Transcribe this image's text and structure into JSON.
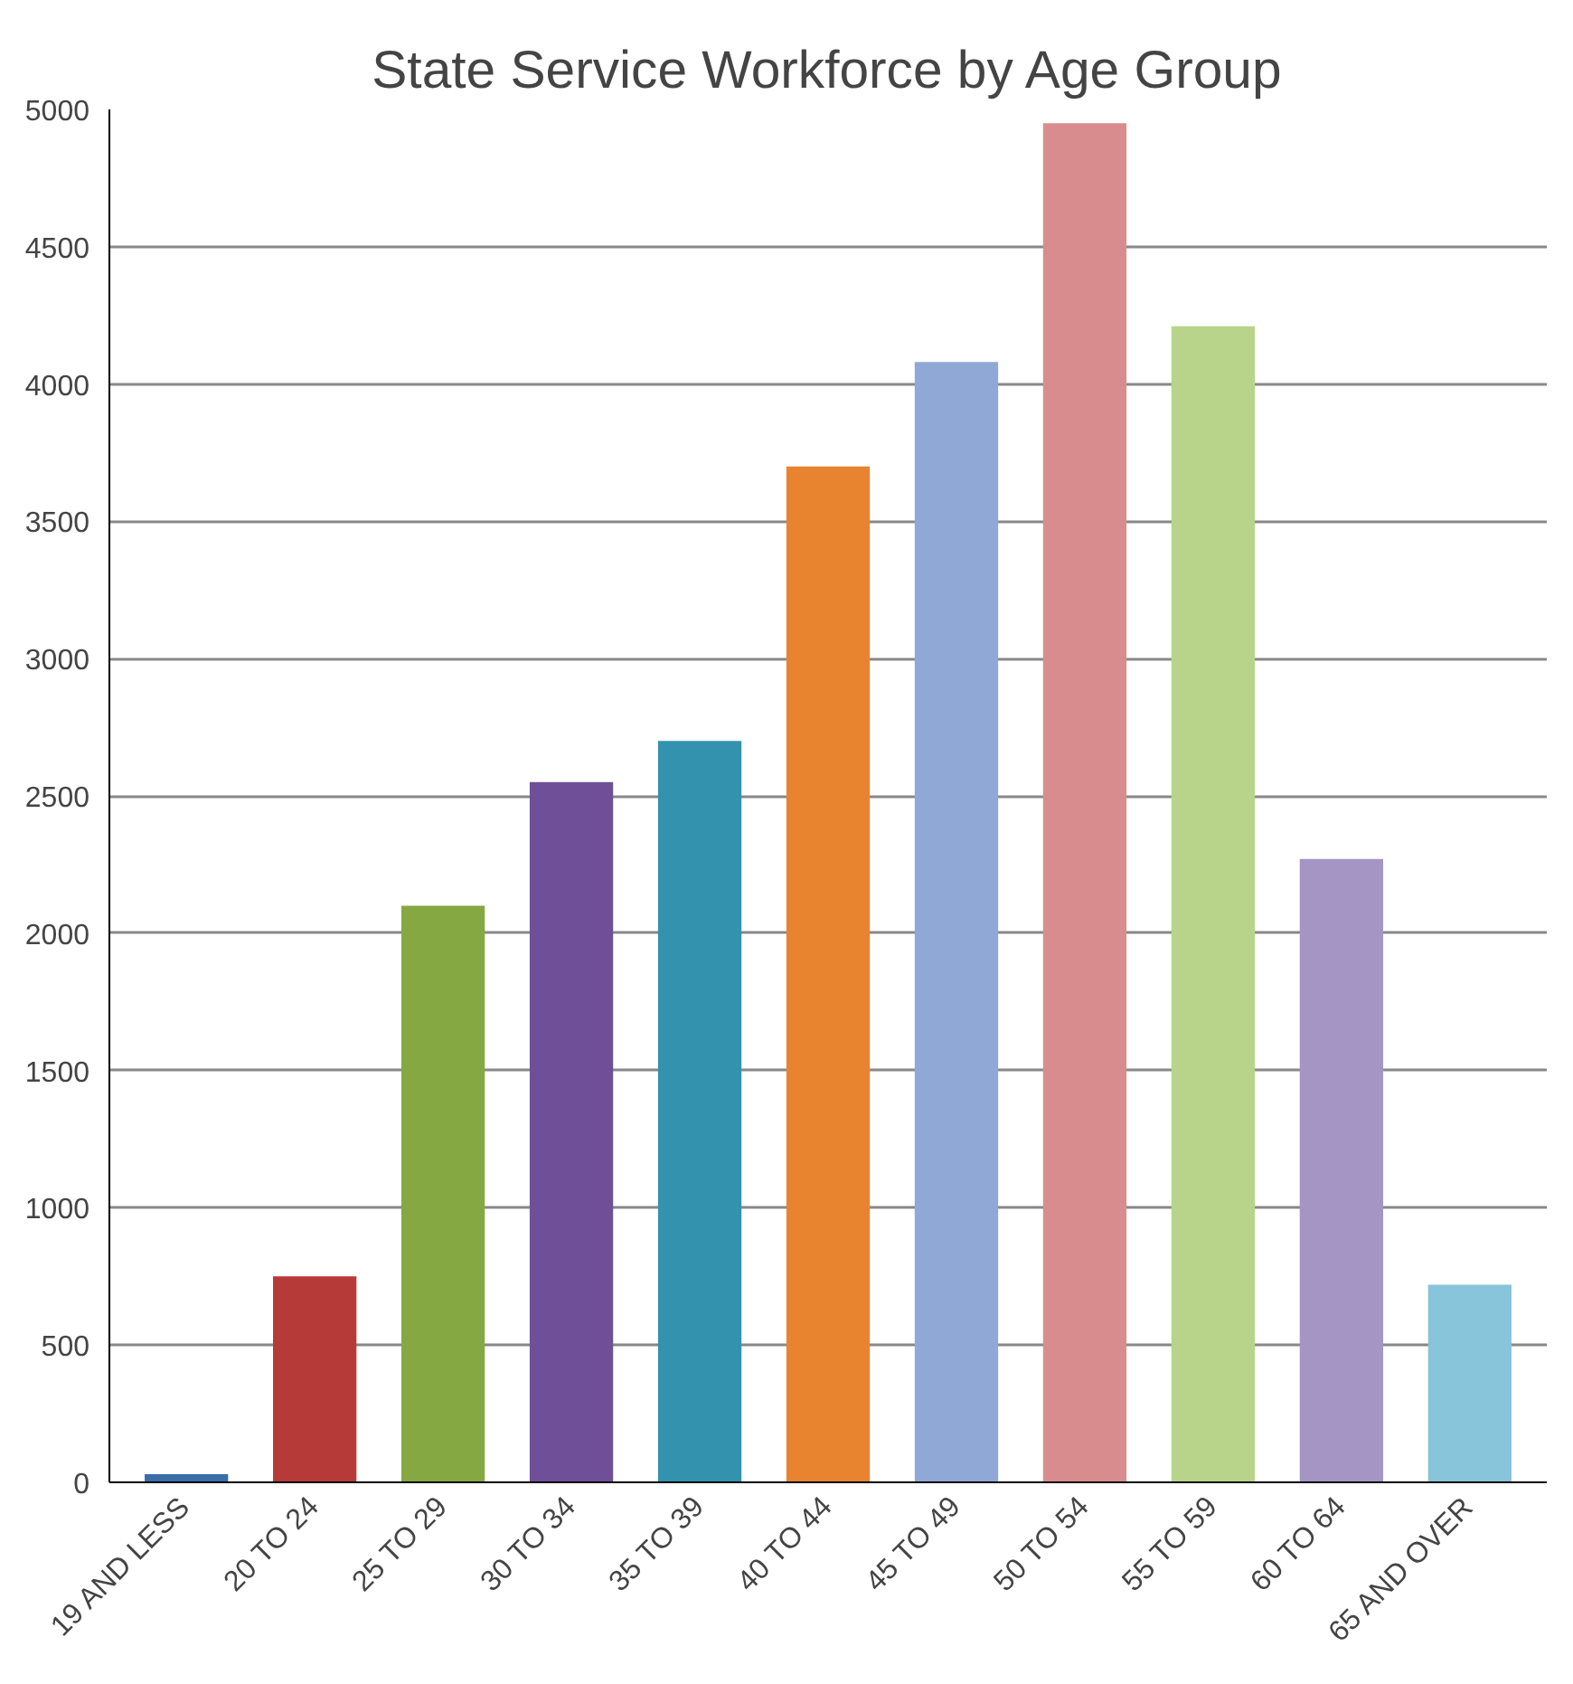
{
  "chart_data": {
    "type": "bar",
    "title": "State Service Workforce by Age Group",
    "categories": [
      "19 AND LESS",
      "20 TO 24",
      "25 TO 29",
      "30 TO 34",
      "35 TO 39",
      "40 TO 44",
      "45 TO 49",
      "50 TO 54",
      "55 TO 59",
      "60 TO 64",
      "65 AND OVER"
    ],
    "values": [
      30,
      750,
      2100,
      2550,
      2700,
      3700,
      4080,
      4950,
      4210,
      2270,
      720
    ],
    "colors": [
      "#3a6ea8",
      "#b63a38",
      "#86a843",
      "#6f4f97",
      "#3392ad",
      "#e8842f",
      "#8fa8d6",
      "#d98c8e",
      "#b8d48a",
      "#a595c4",
      "#88c4da"
    ],
    "ylim": [
      0,
      5000
    ],
    "yticks": [
      0,
      500,
      1000,
      1500,
      2000,
      2500,
      3000,
      3500,
      4000,
      4500,
      5000
    ],
    "grid": "y"
  }
}
